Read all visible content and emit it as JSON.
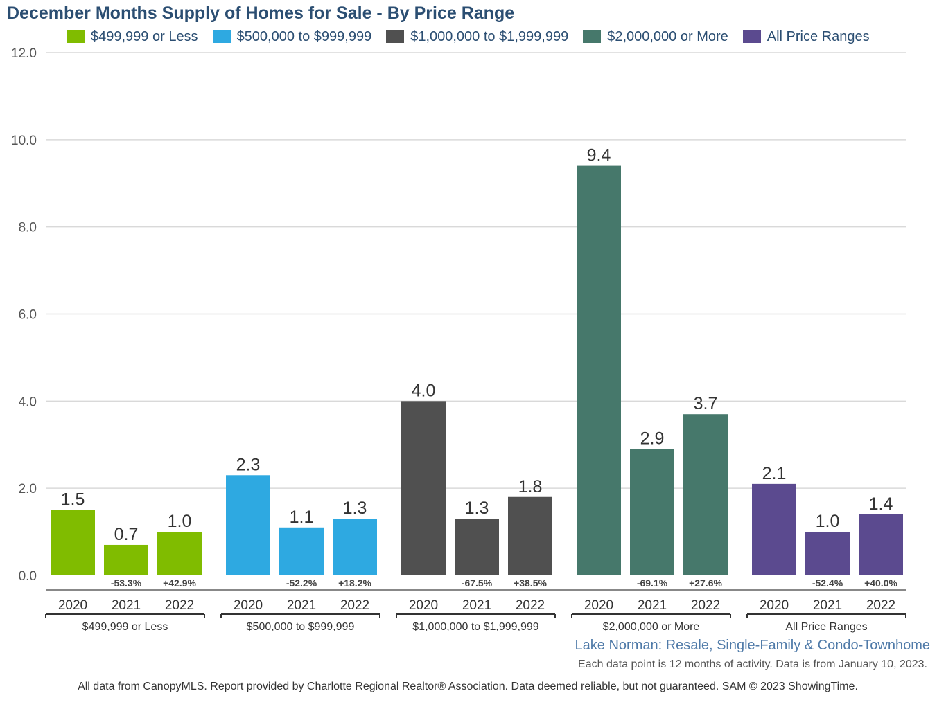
{
  "chart_data": {
    "type": "bar",
    "title": "December Months Supply of Homes for Sale - By Price Range",
    "groups": [
      "$499,999 or Less",
      "$500,000 to $999,999",
      "$1,000,000 to $1,999,999",
      "$2,000,000 or More",
      "All Price Ranges"
    ],
    "years": [
      "2020",
      "2021",
      "2022"
    ],
    "series": [
      {
        "name": "$499,999 or Less",
        "color": "#80bc00",
        "values": [
          1.5,
          0.7,
          1.0
        ],
        "value_labels": [
          "1.5",
          "0.7",
          "1.0"
        ],
        "changes": [
          "",
          "-53.3%",
          "+42.9%"
        ]
      },
      {
        "name": "$500,000 to $999,999",
        "color": "#2ea9e1",
        "values": [
          2.3,
          1.1,
          1.3
        ],
        "value_labels": [
          "2.3",
          "1.1",
          "1.3"
        ],
        "changes": [
          "",
          "-52.2%",
          "+18.2%"
        ]
      },
      {
        "name": "$1,000,000 to $1,999,999",
        "color": "#505050",
        "values": [
          4.0,
          1.3,
          1.8
        ],
        "value_labels": [
          "4.0",
          "1.3",
          "1.8"
        ],
        "changes": [
          "",
          "-67.5%",
          "+38.5%"
        ]
      },
      {
        "name": "$2,000,000 or More",
        "color": "#46786b",
        "values": [
          9.4,
          2.9,
          3.7
        ],
        "value_labels": [
          "9.4",
          "2.9",
          "3.7"
        ],
        "changes": [
          "",
          "-69.1%",
          "+27.6%"
        ]
      },
      {
        "name": "All Price Ranges",
        "color": "#5b4a8f",
        "values": [
          2.1,
          1.0,
          1.4
        ],
        "value_labels": [
          "2.1",
          "1.0",
          "1.4"
        ],
        "changes": [
          "",
          "-52.4%",
          "+40.0%"
        ]
      }
    ],
    "ylim": [
      0,
      12
    ],
    "yticks": [
      0,
      2,
      4,
      6,
      8,
      10,
      12
    ],
    "ytick_labels": [
      "0.0",
      "2.0",
      "4.0",
      "6.0",
      "8.0",
      "10.0",
      "12.0"
    ],
    "grid": true,
    "legend_position": "top"
  },
  "subtitle": "Lake Norman: Resale, Single-Family & Condo-Townhome",
  "note": "Each data point is 12 months of activity. Data is from January 10, 2023.",
  "footer": "All data from CanopyMLS. Report provided by Charlotte Regional Realtor® Association. Data deemed reliable, but not guaranteed. SAM © 2023 ShowingTime."
}
